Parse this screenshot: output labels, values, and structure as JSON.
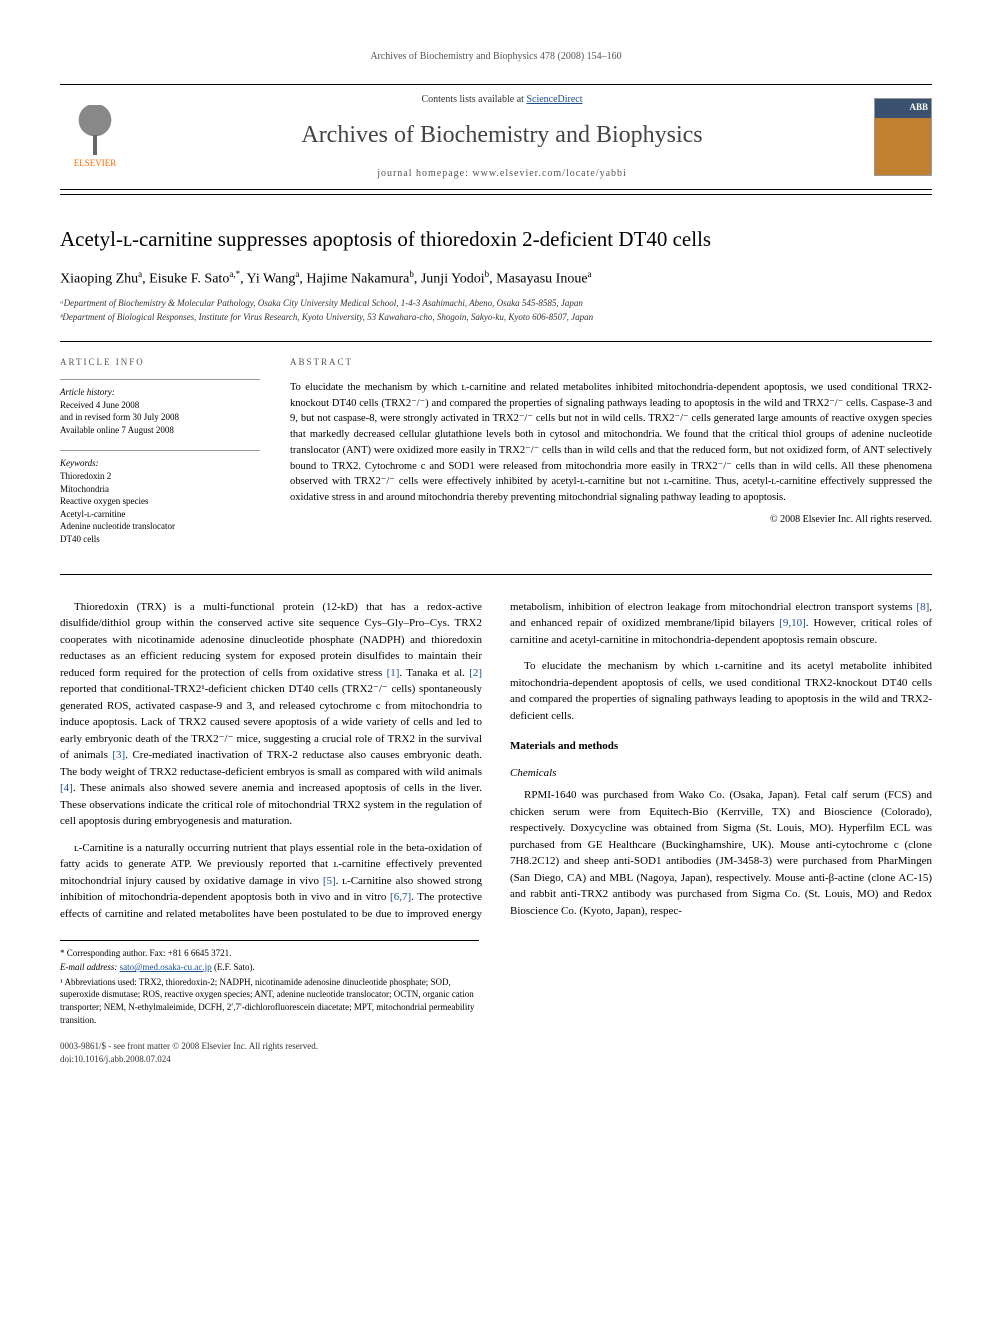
{
  "header": {
    "running_head": "Archives of Biochemistry and Biophysics 478 (2008) 154–160",
    "contents_prefix": "Contents lists available at ",
    "contents_link": "ScienceDirect",
    "journal_title": "Archives of Biochemistry and Biophysics",
    "homepage_label": "journal homepage: ",
    "homepage_url": "www.elsevier.com/locate/yabbi",
    "publisher": "ELSEVIER",
    "cover_badge": "ABB"
  },
  "article": {
    "title": "Acetyl-ʟ-carnitine suppresses apoptosis of thioredoxin 2-deficient DT40 cells",
    "authors_html": "Xiaoping Zhu<sup>a</sup>, Eisuke F. Sato<sup>a,*</sup>, Yi Wang<sup>a</sup>, Hajime Nakamura<sup>b</sup>, Junji Yodoi<sup>b</sup>, Masayasu Inoue<sup>a</sup>",
    "affiliations": [
      "ᵃDepartment of Biochemistry & Molecular Pathology, Osaka City University Medical School, 1-4-3 Asahimachi, Abeno, Osaka 545-8585, Japan",
      "ᵇDepartment of Biological Responses, Institute for Virus Research, Kyoto University, 53 Kawahara-cho, Shogoin, Sakyo-ku, Kyoto 606-8507, Japan"
    ]
  },
  "info": {
    "heading": "ARTICLE INFO",
    "history_label": "Article history:",
    "history": [
      "Received 4 June 2008",
      "and in revised form 30 July 2008",
      "Available online 7 August 2008"
    ],
    "keywords_label": "Keywords:",
    "keywords": [
      "Thioredoxin 2",
      "Mitochondria",
      "Reactive oxygen species",
      "Acetyl-ʟ-carnitine",
      "Adenine nucleotide translocator",
      "DT40 cells"
    ]
  },
  "abstract": {
    "heading": "ABSTRACT",
    "text": "To elucidate the mechanism by which ʟ-carnitine and related metabolites inhibited mitochondria-dependent apoptosis, we used conditional TRX2-knockout DT40 cells (TRX2⁻/⁻) and compared the properties of signaling pathways leading to apoptosis in the wild and TRX2⁻/⁻ cells. Caspase-3 and 9, but not caspase-8, were strongly activated in TRX2⁻/⁻ cells but not in wild cells. TRX2⁻/⁻ cells generated large amounts of reactive oxygen species that markedly decreased cellular glutathione levels both in cytosol and mitochondria. We found that the critical thiol groups of adenine nucleotide translocator (ANT) were oxidized more easily in TRX2⁻/⁻ cells than in wild cells and that the reduced form, but not oxidized form, of ANT selectively bound to TRX2. Cytochrome c and SOD1 were released from mitochondria more easily in TRX2⁻/⁻ cells than in wild cells. All these phenomena observed with TRX2⁻/⁻ cells were effectively inhibited by acetyl-ʟ-carnitine but not ʟ-carnitine. Thus, acetyl-ʟ-carnitine effectively suppressed the oxidative stress in and around mitochondria thereby preventing mitochondrial signaling pathway leading to apoptosis.",
    "copyright": "© 2008 Elsevier Inc. All rights reserved."
  },
  "body": {
    "p1": "Thioredoxin (TRX) is a multi-functional protein (12-kD) that has a redox-active disulfide/dithiol group within the conserved active site sequence Cys–Gly–Pro–Cys. TRX2 cooperates with nicotinamide adenosine dinucleotide phosphate (NADPH) and thioredoxin reductases as an efficient reducing system for exposed protein disulfides to maintain their reduced form required for the protection of cells from oxidative stress [1]. Tanaka et al. [2] reported that conditional-TRX2¹-deficient chicken DT40 cells (TRX2⁻/⁻ cells) spontaneously generated ROS, activated caspase-9 and 3, and released cytochrome c from mitochondria to induce apoptosis. Lack of TRX2 caused severe apoptosis of a wide variety of cells and led to early embryonic death of the TRX2⁻/⁻ mice, suggesting a crucial role of TRX2 in the survival of animals [3]. Cre-mediated inactivation of TRX-2 reductase also causes embryonic death. The body weight of TRX2 reductase-deficient embryos is small as compared with wild animals [4]. These animals also showed severe anemia and increased apoptosis of cells in the liver. These observations indicate the critical role of mitochondrial TRX2 system in the regulation of cell apoptosis during embryogenesis and maturation.",
    "p2": "ʟ-Carnitine is a naturally occurring nutrient that plays essential role in the beta-oxidation of fatty acids to generate ATP. We previously reported that ʟ-carnitine effectively prevented mitochondrial injury caused by oxidative damage in vivo [5]. ʟ-Carnitine also showed strong inhibition of mitochondria-dependent apoptosis both in vivo and in vitro [6,7]. The protective effects of carnitine and related metabolites have been postulated to be due to improved energy metabolism, inhibition of electron leakage from mitochondrial electron transport systems [8], and enhanced repair of oxidized membrane/lipid bilayers [9,10]. However, critical roles of carnitine and acetyl-carnitine in mitochondria-dependent apoptosis remain obscure.",
    "p3": "To elucidate the mechanism by which ʟ-carnitine and its acetyl metabolite inhibited mitochondria-dependent apoptosis of cells, we used conditional TRX2-knockout DT40 cells and compared the properties of signaling pathways leading to apoptosis in the wild and TRX2-deficient cells.",
    "methods_heading": "Materials and methods",
    "chemicals_heading": "Chemicals",
    "p4": "RPMI-1640 was purchased from Wako Co. (Osaka, Japan). Fetal calf serum (FCS) and chicken serum were from Equitech-Bio (Kerrville, TX) and Bioscience (Colorado), respectively. Doxycycline was obtained from Sigma (St. Louis, MO). Hyperfilm ECL was purchased from GE Healthcare (Buckinghamshire, UK). Mouse anti-cytochrome c (clone 7H8.2C12) and sheep anti-SOD1 antibodies (JM-3458-3) were purchased from PharMingen (San Diego, CA) and MBL (Nagoya, Japan), respectively. Mouse anti-β-actine (clone AC-15) and rabbit anti-TRX2 antibody was purchased from Sigma Co. (St. Louis, MO) and Redox Bioscience Co. (Kyoto, Japan), respec-"
  },
  "footnotes": {
    "corresponding": "* Corresponding author. Fax: +81 6 6645 3721.",
    "email_label": "E-mail address: ",
    "email": "sato@med.osaka-cu.ac.jp",
    "email_suffix": " (E.F. Sato).",
    "abbrev": "¹ Abbreviations used: TRX2, thioredoxin-2; NADPH, nicotinamide adenosine dinucleotide phosphate; SOD, superoxide dismutase; ROS, reactive oxygen species; ANT, adenine nucleotide translocator; OCTN, organic cation transporter; NEM, N-ethylmaleimide, DCFH, 2′,7′-dichlorofluorescein diacetate; MPT, mitochondrial permeability transition."
  },
  "footer": {
    "left1": "0003-9861/$ - see front matter © 2008 Elsevier Inc. All rights reserved.",
    "left2": "doi:10.1016/j.abb.2008.07.024"
  },
  "colors": {
    "link": "#1a4f8f",
    "text": "#000000",
    "muted": "#555555",
    "rule": "#000000"
  }
}
